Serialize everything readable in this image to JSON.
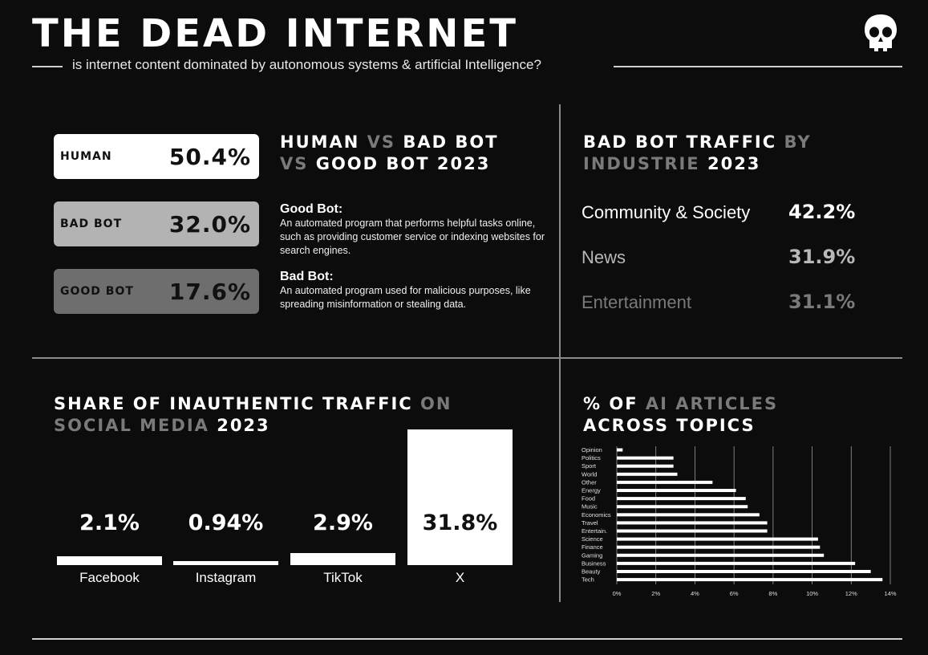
{
  "header": {
    "title": "THE DEAD INTERNET",
    "subtitle": "is  internet content dominated by autonomous systems & artificial Intelligence?",
    "icon": "skull-icon"
  },
  "traffic": {
    "heading_a": "HUMAN",
    "heading_b": "VS",
    "heading_c": "BAD BOT",
    "heading_d": "VS",
    "heading_e": "GOOD BOT 2023",
    "cards": [
      {
        "label": "HUMAN",
        "value": "50.4%",
        "bg": "#ffffff",
        "fg": "#111111"
      },
      {
        "label": "BAD BOT",
        "value": "32.0%",
        "bg": "#b3b3b3",
        "fg": "#111111"
      },
      {
        "label": "GOOD BOT",
        "value": "17.6%",
        "bg": "#6e6e6e",
        "fg": "#111111"
      }
    ],
    "definitions": [
      {
        "term": "Good Bot:",
        "text": "An automated program that performs helpful tasks online, such as providing customer service or indexing websites for search engines."
      },
      {
        "term": "Bad Bot:",
        "text": "An automated program used for malicious purposes, like spreading misinformation or stealing data."
      }
    ]
  },
  "industry": {
    "heading_a": "BAD BOT TRAFFIC",
    "heading_b": "BY",
    "heading_c": "INDUSTRIE",
    "heading_d": "2023",
    "rows": [
      {
        "name": "Community & Society",
        "value": "42.2%",
        "color": "#ffffff"
      },
      {
        "name": "News",
        "value": "31.9%",
        "color": "#b8b8b8"
      },
      {
        "name": "Entertainment",
        "value": "31.1%",
        "color": "#7a7a7a"
      }
    ]
  },
  "social": {
    "heading_a": "SHARE OF INAUTHENTIC TRAFFIC",
    "heading_b": "ON",
    "heading_c": "SOCIAL MEDIA",
    "heading_d": "2023"
  },
  "ai_articles": {
    "heading_a": "%  OF",
    "heading_b": "AI ARTICLES",
    "heading_c": "ACROSS TOPICS"
  },
  "chart_data": [
    {
      "type": "bar",
      "title": "SHARE OF INAUTHENTIC TRAFFIC ON SOCIAL MEDIA 2023",
      "categories": [
        "Facebook",
        "Instagram",
        "TikTok",
        "X"
      ],
      "values": [
        2.1,
        0.94,
        2.9,
        31.8
      ],
      "labels": [
        "2.1%",
        "0.94%",
        "2.9%",
        "31.8%"
      ],
      "ylim": [
        0,
        31.8
      ]
    },
    {
      "type": "bar",
      "orientation": "horizontal",
      "title": "% OF AI ARTICLES ACROSS TOPICS",
      "categories": [
        "Opinion",
        "Politics",
        "Sport",
        "World",
        "Other",
        "Energy",
        "Food",
        "Music",
        "Economics",
        "Travel",
        "Entertain.",
        "Science",
        "Finance",
        "Gaming",
        "Business",
        "Beauty",
        "Tech"
      ],
      "values": [
        0.3,
        2.9,
        2.9,
        3.1,
        4.9,
        6.1,
        6.6,
        6.7,
        7.3,
        7.7,
        7.7,
        10.3,
        10.4,
        10.6,
        12.2,
        13.0,
        13.6
      ],
      "xticks": [
        "0%",
        "2%",
        "4%",
        "6%",
        "8%",
        "10%",
        "12%",
        "14%"
      ],
      "xlim": [
        0,
        14
      ],
      "grid": true
    }
  ]
}
